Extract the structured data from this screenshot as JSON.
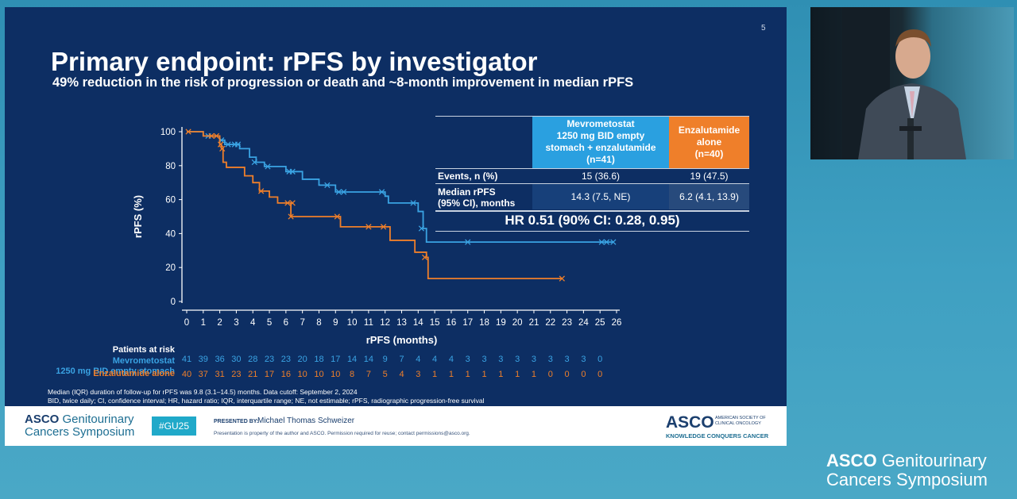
{
  "slide": {
    "number": "5",
    "title": "Primary endpoint: rPFS by investigator",
    "subtitle": "49% reduction in the risk of progression or death and ~8-month improvement in median rPFS"
  },
  "table": {
    "header_blue": [
      "Mevrometostat",
      "1250 mg BID empty",
      "stomach + enzalutamide",
      "(n=41)"
    ],
    "header_orange": [
      "Enzalutamide",
      "alone",
      "(n=40)"
    ],
    "rows": [
      {
        "label": [
          "Events, n (%)"
        ],
        "mevro": "15 (36.6)",
        "enza": "19 (47.5)"
      },
      {
        "label": [
          "Median rPFS",
          "(95% CI), months"
        ],
        "mevro": "14.3 (7.5, NE)",
        "enza": "6.2 (4.1, 13.9)"
      }
    ],
    "hr": "HR 0.51 (90% CI: 0.28, 0.95)"
  },
  "chart_data": {
    "type": "line",
    "step": true,
    "xlabel": "rPFS (months)",
    "ylabel": "rPFS (%)",
    "xlim": [
      0,
      26
    ],
    "ylim": [
      0,
      100
    ],
    "x_ticks": [
      0,
      1,
      2,
      3,
      4,
      5,
      6,
      7,
      8,
      9,
      10,
      11,
      12,
      13,
      14,
      15,
      16,
      17,
      18,
      19,
      20,
      21,
      22,
      23,
      24,
      25,
      26
    ],
    "y_ticks": [
      0,
      20,
      40,
      60,
      80,
      100
    ],
    "series": [
      {
        "color": "#3aa3e3",
        "steps": [
          [
            0,
            100
          ],
          [
            1,
            97.5
          ],
          [
            2,
            95
          ],
          [
            2.3,
            92.5
          ],
          [
            3.2,
            90
          ],
          [
            3.8,
            85
          ],
          [
            4.2,
            82
          ],
          [
            4.7,
            79.5
          ],
          [
            6,
            76.5
          ],
          [
            7,
            72
          ],
          [
            8,
            68.5
          ],
          [
            9,
            64.5
          ],
          [
            12,
            62
          ],
          [
            12.2,
            58
          ],
          [
            14,
            53
          ],
          [
            14.3,
            43
          ],
          [
            14.5,
            35
          ],
          [
            25.8,
            35
          ]
        ],
        "censored": [
          [
            1.3,
            97.5
          ],
          [
            2.1,
            95
          ],
          [
            2.5,
            92.5
          ],
          [
            2.9,
            92.5
          ],
          [
            3.1,
            92.5
          ],
          [
            4.1,
            82
          ],
          [
            4.9,
            79.5
          ],
          [
            6.2,
            76.5
          ],
          [
            6.4,
            76.5
          ],
          [
            8.5,
            68.5
          ],
          [
            9.2,
            64.5
          ],
          [
            9.5,
            64.5
          ],
          [
            11.8,
            64.5
          ],
          [
            13.7,
            58
          ],
          [
            14.2,
            43
          ],
          [
            17,
            35
          ],
          [
            25.1,
            35
          ],
          [
            25.4,
            35
          ],
          [
            25.8,
            35
          ]
        ]
      },
      {
        "color": "#ef7f2a",
        "steps": [
          [
            0,
            100
          ],
          [
            1,
            97.5
          ],
          [
            2,
            92.5
          ],
          [
            2.1,
            90
          ],
          [
            2.2,
            82
          ],
          [
            2.4,
            79
          ],
          [
            3.5,
            74
          ],
          [
            4,
            70
          ],
          [
            4.4,
            65
          ],
          [
            5,
            61.5
          ],
          [
            5.5,
            58
          ],
          [
            6.3,
            50
          ],
          [
            9.3,
            44
          ],
          [
            12.3,
            36
          ],
          [
            13.8,
            29
          ],
          [
            14.5,
            26
          ],
          [
            14.6,
            13.5
          ],
          [
            22.7,
            13.5
          ]
        ],
        "censored": [
          [
            0.1,
            100
          ],
          [
            1.5,
            97.5
          ],
          [
            1.8,
            97.5
          ],
          [
            2.05,
            92.5
          ],
          [
            2.15,
            90
          ],
          [
            4.5,
            65
          ],
          [
            6.1,
            58
          ],
          [
            6.4,
            58
          ],
          [
            6.3,
            50
          ],
          [
            9.1,
            50
          ],
          [
            11,
            44
          ],
          [
            11.9,
            44
          ],
          [
            14.4,
            26
          ],
          [
            22.7,
            13.5
          ]
        ]
      }
    ]
  },
  "risk": {
    "heading": "Patients at risk",
    "mevro_label": [
      "Mevrometostat",
      "1250 mg BID empty stomach"
    ],
    "mevro_color": "#3aa3e3",
    "mevro_values": [
      "41",
      "39",
      "36",
      "30",
      "28",
      "23",
      "23",
      "20",
      "18",
      "17",
      "14",
      "14",
      "9",
      "7",
      "4",
      "4",
      "4",
      "3",
      "3",
      "3",
      "3",
      "3",
      "3",
      "3",
      "3",
      "0"
    ],
    "enza_label": "Enzalutamide alone",
    "enza_color": "#ef7f2a",
    "enza_values": [
      "40",
      "37",
      "31",
      "23",
      "21",
      "17",
      "16",
      "10",
      "10",
      "10",
      "8",
      "7",
      "5",
      "4",
      "3",
      "1",
      "1",
      "1",
      "1",
      "1",
      "1",
      "1",
      "0",
      "0",
      "0",
      "0"
    ]
  },
  "footnotes": [
    "Median (IQR) duration of follow-up for rPFS was 9.8 (3.1–14.5) months. Data cutoff: September 2, 2024",
    "BID, twice daily; CI, confidence interval; HR, hazard ratio; IQR, interquartile range; NE, not estimable; rPFS, radiographic progression-free survival"
  ],
  "banner": {
    "logo_bold": "ASCO",
    "logo_line1": "Genitourinary",
    "logo_line2": "Cancers Symposium",
    "hashtag": "#GU25",
    "presented_by": "PRESENTED BY:",
    "presenter": "Michael Thomas Schweizer",
    "property": "Presentation is property of the author and ASCO. Permission required for reuse; contact permissions@asco.org.",
    "asco": "ASCO",
    "asco_side": "AMERICAN SOCIETY OF CLINICAL ONCOLOGY",
    "knowledge": "KNOWLEDGE CONQUERS CANCER"
  },
  "watermark": {
    "bold": "ASCO",
    "line1": "Genitourinary",
    "line2": "Cancers Symposium"
  }
}
